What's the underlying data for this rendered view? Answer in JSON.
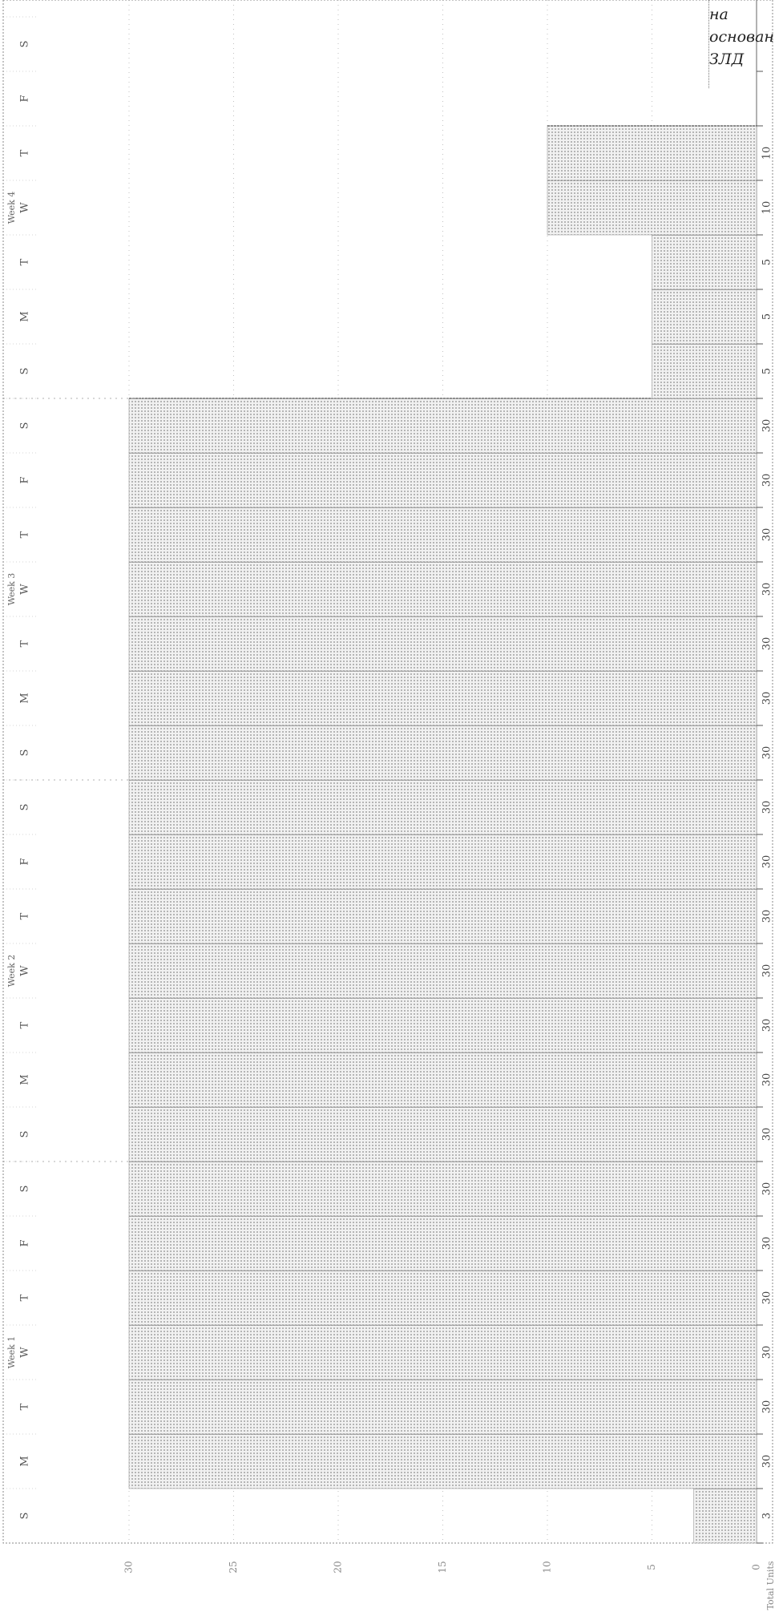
{
  "caption": {
    "lines": [
      "на",
      "основан",
      "ЗЛД"
    ]
  },
  "chart_data": {
    "type": "bar",
    "orientation": "horizontal",
    "categories": [
      "S",
      "M",
      "T",
      "W",
      "T",
      "F",
      "S",
      "S",
      "M",
      "T",
      "W",
      "T",
      "F",
      "S",
      "S",
      "M",
      "T",
      "W",
      "T",
      "F",
      "S",
      "S",
      "M",
      "T",
      "W",
      "T",
      "F",
      "S"
    ],
    "week_labels": [
      "Week 1",
      "Week 2",
      "Week 3",
      "Week 4"
    ],
    "values": [
      3,
      30,
      30,
      30,
      30,
      30,
      30,
      30,
      30,
      30,
      30,
      30,
      30,
      30,
      30,
      30,
      30,
      30,
      30,
      30,
      30,
      5,
      5,
      5,
      10,
      10,
      null,
      null
    ],
    "data_labels": [
      "3",
      "30",
      "30",
      "30",
      "30",
      "30",
      "30",
      "30",
      "30",
      "30",
      "30",
      "30",
      "30",
      "30",
      "30",
      "30",
      "30",
      "30",
      "30",
      "30",
      "30",
      "5",
      "5",
      "5",
      "10",
      "10",
      "",
      ""
    ],
    "ylabel": "Total Units",
    "xlim": [
      0,
      35
    ],
    "x_ticks": [
      0,
      5,
      10,
      15,
      20,
      25,
      30
    ],
    "grid": true,
    "colors": {
      "fill": "#c9c9c9",
      "edge": "#555555",
      "grid": "#999999"
    }
  }
}
